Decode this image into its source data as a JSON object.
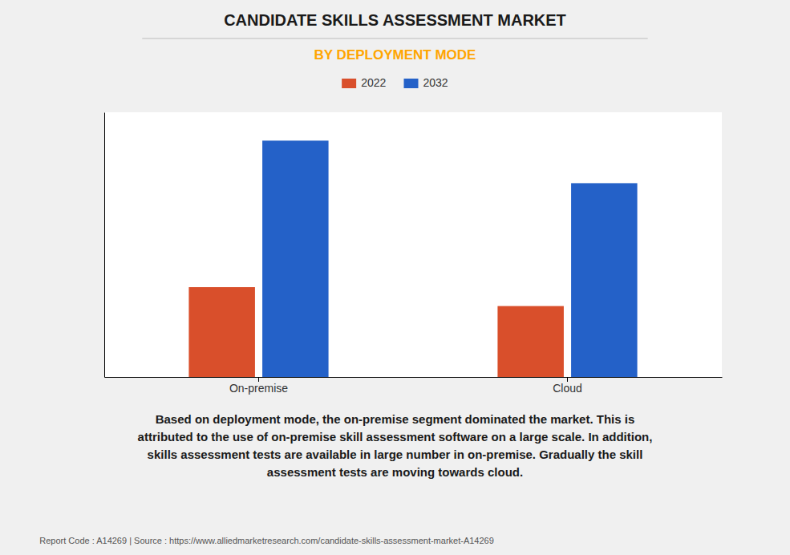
{
  "chart_data": {
    "type": "bar",
    "title": "CANDIDATE SKILLS ASSESSMENT MARKET",
    "subtitle": "BY DEPLOYMENT MODE",
    "categories": [
      "On-premise",
      "Cloud"
    ],
    "series": [
      {
        "name": "2022",
        "color": "#D94F2B",
        "values": [
          0.38,
          0.3
        ]
      },
      {
        "name": "2032",
        "color": "#2461C8",
        "values": [
          1.0,
          0.82
        ]
      }
    ],
    "ylim": [
      0,
      1.12
    ],
    "yticks": [],
    "grid": false,
    "tick_labels": "x",
    "legend": "top",
    "annotations": [
      "Based on deployment mode, the on-premise segment dominated the market. This is\nattributed to the use of on-premise skill assessment software on a large scale. In addition,\nskills assessment tests are available in large number in on-premise. Gradually the skill\nassessment tests are moving towards cloud.",
      "Report Code : A14269  |  Source : https://www.alliedmarketresearch.com/candidate-skills-assessment-market-A14269"
    ]
  }
}
